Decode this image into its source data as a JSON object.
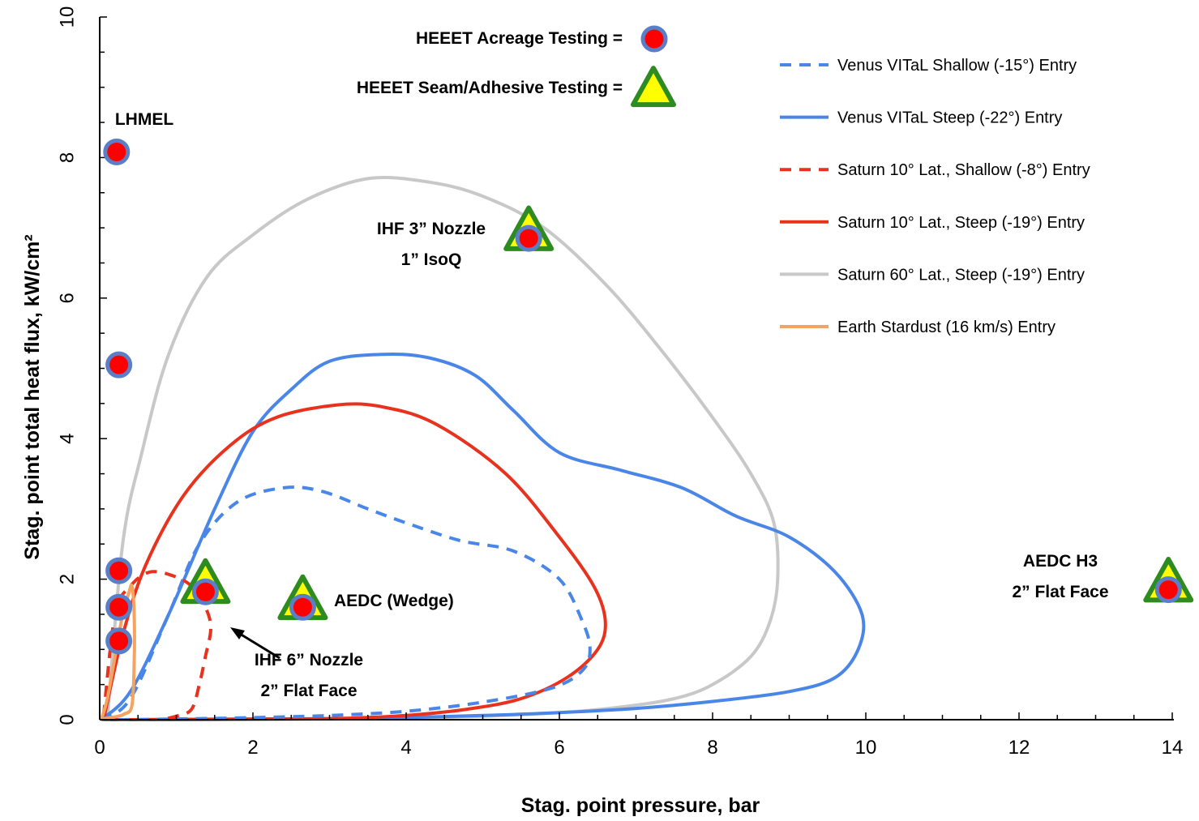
{
  "chart_data": {
    "type": "line",
    "xlabel": "Stag. point pressure, bar",
    "ylabel": "Stag. point total heat flux, kW/cm²",
    "xlim": [
      0,
      14
    ],
    "ylim": [
      0,
      10
    ],
    "xticks": [
      0,
      2,
      4,
      6,
      8,
      10,
      12,
      14
    ],
    "yticks": [
      0,
      2,
      4,
      6,
      8,
      10
    ],
    "grid": false,
    "legend_placement": "top-right",
    "series": [
      {
        "name": "Venus VITaL Shallow (-15°) Entry",
        "color": "#4a86e8",
        "dash": true,
        "x": [
          0.02,
          0.4,
          0.9,
          1.3,
          1.8,
          2.4,
          2.9,
          3.5,
          4.0,
          4.7,
          5.4,
          6.0,
          6.3,
          6.4,
          6.3,
          5.9,
          5.0,
          4.0,
          3.0,
          2.0,
          1.0,
          0.3,
          0.02
        ],
        "y": [
          0.0,
          0.3,
          1.5,
          2.5,
          3.1,
          3.3,
          3.25,
          3.0,
          2.8,
          2.55,
          2.4,
          2.0,
          1.4,
          1.0,
          0.7,
          0.45,
          0.25,
          0.12,
          0.06,
          0.03,
          0.01,
          0.0,
          0.0
        ]
      },
      {
        "name": "Venus VITaL Steep (-22°) Entry",
        "color": "#4a86e8",
        "dash": false,
        "x": [
          0.02,
          0.4,
          0.9,
          1.5,
          2.0,
          2.5,
          3.0,
          3.7,
          4.3,
          4.9,
          5.4,
          6.0,
          6.8,
          7.6,
          8.3,
          9.0,
          9.6,
          9.95,
          9.9,
          9.6,
          9.0,
          8.0,
          7.0,
          6.0,
          5.0,
          4.0,
          3.0,
          2.0,
          1.0,
          0.3,
          0.02
        ],
        "y": [
          0.0,
          0.4,
          1.5,
          3.0,
          4.1,
          4.7,
          5.1,
          5.2,
          5.15,
          4.9,
          4.4,
          3.8,
          3.55,
          3.3,
          2.9,
          2.6,
          2.1,
          1.5,
          1.0,
          0.6,
          0.4,
          0.26,
          0.16,
          0.1,
          0.06,
          0.03,
          0.015,
          0.01,
          0.005,
          0.0,
          0.0
        ]
      },
      {
        "name": "Saturn 10° Lat., Shallow (-8°) Entry",
        "color": "#e8321e",
        "dash": true,
        "x": [
          0.05,
          0.2,
          0.4,
          0.65,
          0.95,
          1.2,
          1.38,
          1.45,
          1.38,
          1.3,
          1.2,
          1.0,
          0.8
        ],
        "y": [
          0.05,
          1.5,
          1.9,
          2.1,
          2.05,
          1.9,
          1.6,
          1.3,
          0.9,
          0.5,
          0.15,
          0.05,
          0.0
        ]
      },
      {
        "name": "Saturn 10° Lat., Steep (-19°) Entry",
        "color": "#e8321e",
        "dash": false,
        "x": [
          0.05,
          0.3,
          0.6,
          1.1,
          1.7,
          2.3,
          3.1,
          3.7,
          4.4,
          5.3,
          6.0,
          6.45,
          6.6,
          6.5,
          6.1,
          5.5,
          4.8,
          4.0,
          3.2,
          2.5,
          1.5,
          0.5,
          0.1
        ],
        "y": [
          0.0,
          1.2,
          2.2,
          3.2,
          3.9,
          4.3,
          4.48,
          4.45,
          4.2,
          3.5,
          2.6,
          1.9,
          1.4,
          1.0,
          0.6,
          0.3,
          0.15,
          0.06,
          0.02,
          0.01,
          0.005,
          0.0,
          0.0
        ]
      },
      {
        "name": "Saturn 60° Lat., Steep (-19°) Entry",
        "color": "#c8c8c8",
        "dash": false,
        "x": [
          0.1,
          0.3,
          0.55,
          0.9,
          1.4,
          2.0,
          2.7,
          3.5,
          4.3,
          5.0,
          5.8,
          6.6,
          7.3,
          8.0,
          8.5,
          8.8,
          8.85,
          8.75,
          8.5,
          8.0,
          7.5,
          6.8,
          6.0,
          5.0,
          4.0,
          3.0,
          2.0,
          1.0,
          0.3
        ],
        "y": [
          0.0,
          2.5,
          3.8,
          5.2,
          6.3,
          6.9,
          7.4,
          7.7,
          7.65,
          7.45,
          7.0,
          6.2,
          5.3,
          4.3,
          3.5,
          2.8,
          2.0,
          1.4,
          0.9,
          0.5,
          0.3,
          0.18,
          0.1,
          0.05,
          0.02,
          0.01,
          0.005,
          0.0,
          0.0
        ]
      },
      {
        "name": "Earth Stardust (16 km/s) Entry",
        "color": "#f4a460",
        "dash": false,
        "x": [
          0.02,
          0.1,
          0.2,
          0.3,
          0.38,
          0.42,
          0.45,
          0.45,
          0.42,
          0.32,
          0.2,
          0.08,
          0.02
        ],
        "y": [
          0.0,
          0.3,
          0.9,
          1.5,
          1.8,
          1.9,
          1.5,
          0.8,
          0.2,
          0.08,
          0.04,
          0.02,
          0.0
        ]
      }
    ],
    "markers": {
      "acreage": {
        "label": "HEEET Acreage Testing =",
        "points": [
          {
            "x": 0.22,
            "y": 8.08
          },
          {
            "x": 0.25,
            "y": 5.05
          },
          {
            "x": 0.25,
            "y": 2.12
          },
          {
            "x": 0.25,
            "y": 1.6
          },
          {
            "x": 0.25,
            "y": 1.12
          },
          {
            "x": 1.38,
            "y": 1.82
          },
          {
            "x": 2.65,
            "y": 1.6
          },
          {
            "x": 5.6,
            "y": 6.85
          },
          {
            "x": 13.95,
            "y": 1.85
          }
        ]
      },
      "seam": {
        "label": "HEEET Seam/Adhesive Testing =",
        "points": [
          {
            "x": 1.38,
            "y": 1.88
          },
          {
            "x": 2.65,
            "y": 1.65
          },
          {
            "x": 5.6,
            "y": 6.9
          },
          {
            "x": 13.95,
            "y": 1.9
          }
        ]
      }
    },
    "annotations": [
      {
        "lines": [
          "LHMEL"
        ]
      },
      {
        "lines": [
          "IHF 3” Nozzle",
          "1” IsoQ"
        ]
      },
      {
        "lines": [
          "AEDC (Wedge)"
        ]
      },
      {
        "lines": [
          "IHF 6” Nozzle",
          "2” Flat Face"
        ]
      },
      {
        "lines": [
          "AEDC H3",
          "2” Flat Face"
        ]
      }
    ]
  }
}
